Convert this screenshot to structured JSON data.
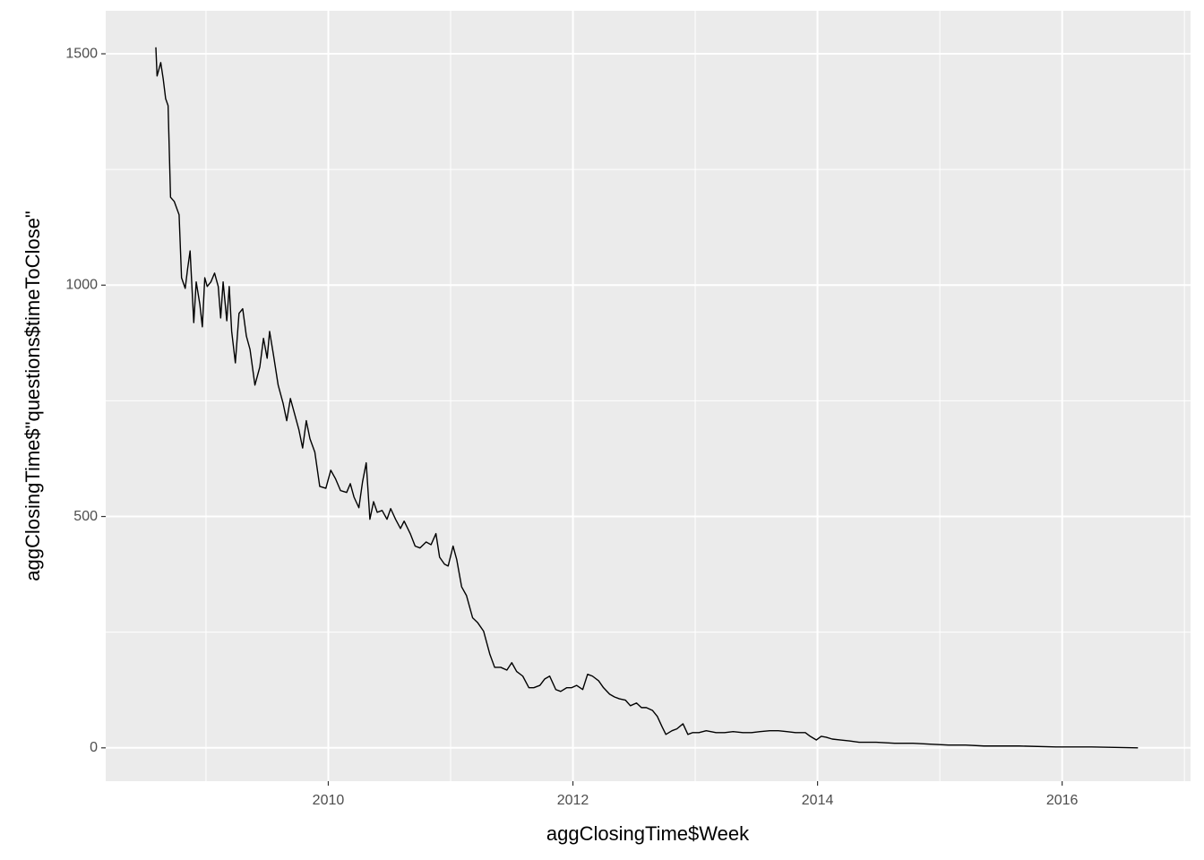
{
  "chart_data": {
    "type": "line",
    "x_label": "aggClosingTime$Week",
    "y_label": "aggClosingTime$\"questions$timeToClose\"",
    "xlim": [
      2008.18,
      2017.05
    ],
    "ylim": [
      -72,
      1593
    ],
    "xticks": [
      2010,
      2012,
      2014,
      2016
    ],
    "yticks": [
      0,
      500,
      1000,
      1500
    ],
    "x_minor_grid": [
      2009,
      2011,
      2013,
      2015,
      2017
    ],
    "y_minor_grid": [
      250,
      750,
      1250
    ],
    "grid": true,
    "panel_color": "#ebebeb",
    "grid_color": "#ffffff",
    "color": "#000000",
    "x": [
      2008.59,
      2008.6,
      2008.63,
      2008.65,
      2008.67,
      2008.69,
      2008.71,
      2008.74,
      2008.78,
      2008.8,
      2008.83,
      2008.85,
      2008.87,
      2008.9,
      2008.92,
      2008.95,
      2008.97,
      2008.99,
      2009.01,
      2009.04,
      2009.07,
      2009.1,
      2009.12,
      2009.14,
      2009.17,
      2009.19,
      2009.21,
      2009.24,
      2009.27,
      2009.3,
      2009.33,
      2009.36,
      2009.4,
      2009.44,
      2009.47,
      2009.5,
      2009.52,
      2009.55,
      2009.59,
      2009.63,
      2009.66,
      2009.69,
      2009.72,
      2009.76,
      2009.79,
      2009.82,
      2009.85,
      2009.89,
      2009.93,
      2009.98,
      2010.02,
      2010.06,
      2010.1,
      2010.15,
      2010.18,
      2010.21,
      2010.25,
      2010.28,
      2010.31,
      2010.34,
      2010.37,
      2010.4,
      2010.44,
      2010.48,
      2010.51,
      2010.55,
      2010.59,
      2010.62,
      2010.67,
      2010.71,
      2010.75,
      2010.8,
      2010.84,
      2010.88,
      2010.91,
      2010.95,
      2010.98,
      2011.02,
      2011.05,
      2011.09,
      2011.13,
      2011.18,
      2011.22,
      2011.27,
      2011.32,
      2011.36,
      2011.41,
      2011.46,
      2011.5,
      2011.54,
      2011.59,
      2011.64,
      2011.68,
      2011.73,
      2011.77,
      2011.81,
      2011.86,
      2011.9,
      2011.95,
      2011.99,
      2012.03,
      2012.08,
      2012.12,
      2012.16,
      2012.21,
      2012.25,
      2012.3,
      2012.34,
      2012.38,
      2012.43,
      2012.47,
      2012.52,
      2012.56,
      2012.6,
      2012.65,
      2012.69,
      2012.73,
      2012.76,
      2012.81,
      2012.85,
      2012.9,
      2012.94,
      2012.98,
      2013.03,
      2013.09,
      2013.17,
      2013.24,
      2013.31,
      2013.39,
      2013.46,
      2013.53,
      2013.61,
      2013.68,
      2013.75,
      2013.82,
      2013.9,
      2013.94,
      2013.99,
      2014.03,
      2014.07,
      2014.12,
      2014.19,
      2014.26,
      2014.34,
      2014.48,
      2014.63,
      2014.78,
      2014.92,
      2015.07,
      2015.21,
      2015.36,
      2015.65,
      2015.95,
      2016.24,
      2016.62
    ],
    "values": [
      1514,
      1452,
      1481,
      1446,
      1403,
      1388,
      1190,
      1181,
      1152,
      1016,
      993,
      1036,
      1074,
      919,
      1007,
      958,
      910,
      1016,
      997,
      1007,
      1026,
      997,
      929,
      1007,
      923,
      997,
      900,
      832,
      939,
      949,
      890,
      861,
      784,
      823,
      885,
      842,
      900,
      852,
      784,
      745,
      707,
      755,
      726,
      687,
      648,
      707,
      668,
      639,
      565,
      561,
      600,
      581,
      556,
      552,
      571,
      542,
      519,
      575,
      616,
      494,
      532,
      509,
      513,
      494,
      517,
      494,
      474,
      490,
      463,
      436,
      432,
      445,
      439,
      463,
      412,
      397,
      393,
      436,
      407,
      348,
      329,
      281,
      271,
      252,
      203,
      174,
      174,
      168,
      184,
      165,
      155,
      130,
      130,
      135,
      149,
      155,
      126,
      122,
      130,
      130,
      135,
      126,
      159,
      155,
      145,
      130,
      116,
      110,
      106,
      103,
      91,
      97,
      87,
      87,
      81,
      68,
      45,
      29,
      37,
      41,
      52,
      29,
      33,
      33,
      37,
      33,
      33,
      35,
      33,
      33,
      35,
      37,
      37,
      35,
      33,
      33,
      25,
      17,
      25,
      23,
      19,
      17,
      15,
      12,
      12,
      10,
      10,
      8,
      6,
      6,
      4,
      4,
      2,
      2,
      0
    ]
  }
}
